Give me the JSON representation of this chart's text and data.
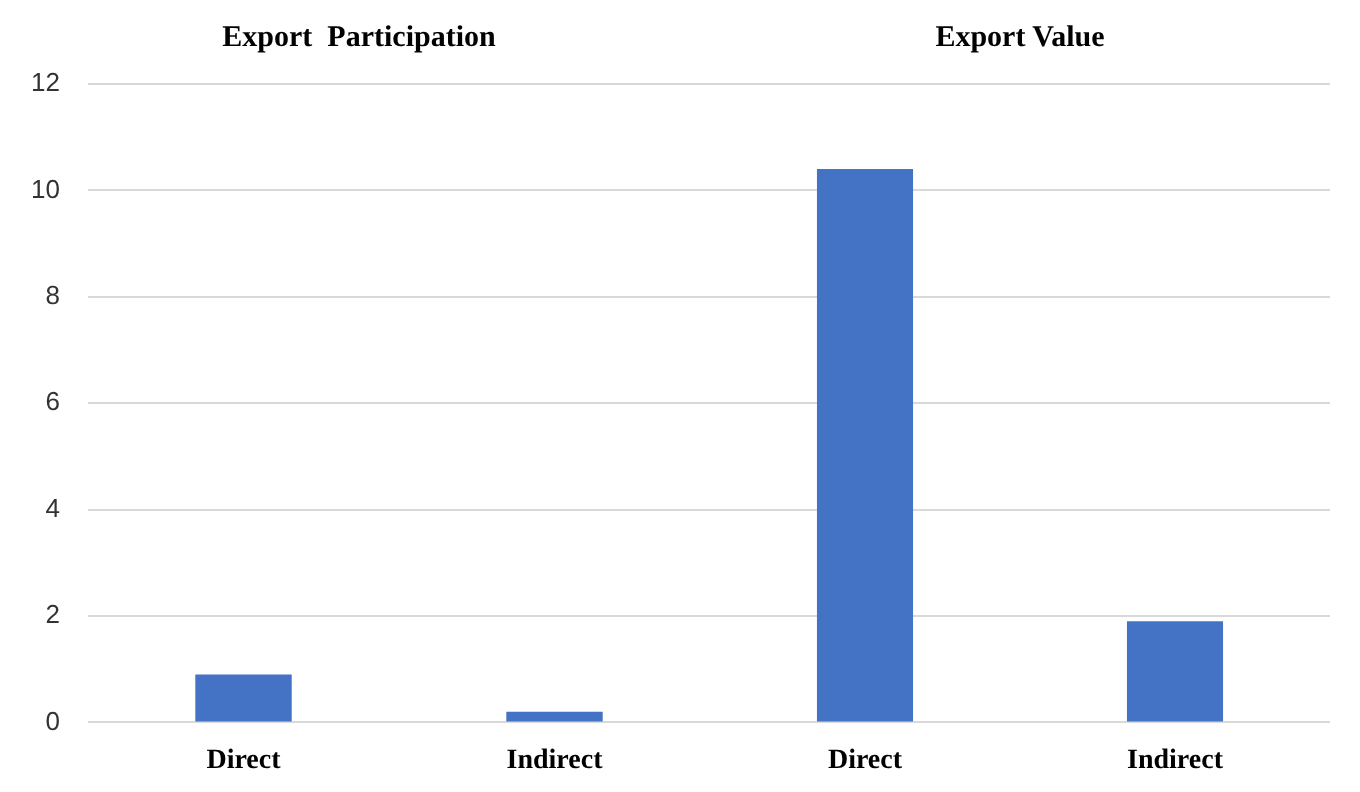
{
  "chart_data": [
    {
      "type": "bar",
      "title": "Export  Participation",
      "categories": [
        "Direct",
        "Indirect"
      ],
      "values": [
        0.9,
        0.2
      ],
      "color": "#4472c4",
      "ylim": [
        0,
        12
      ],
      "yticks": [
        0,
        2,
        4,
        6,
        8,
        10,
        12
      ],
      "grid": "y"
    },
    {
      "type": "bar",
      "title": "Export Value",
      "categories": [
        "Direct",
        "Indirect"
      ],
      "values": [
        10.4,
        1.9
      ],
      "color": "#4472c4",
      "ylim": [
        0,
        12
      ],
      "yticks": [
        0,
        2,
        4,
        6,
        8,
        10,
        12
      ],
      "grid": "y",
      "tick_labels": "x"
    }
  ]
}
